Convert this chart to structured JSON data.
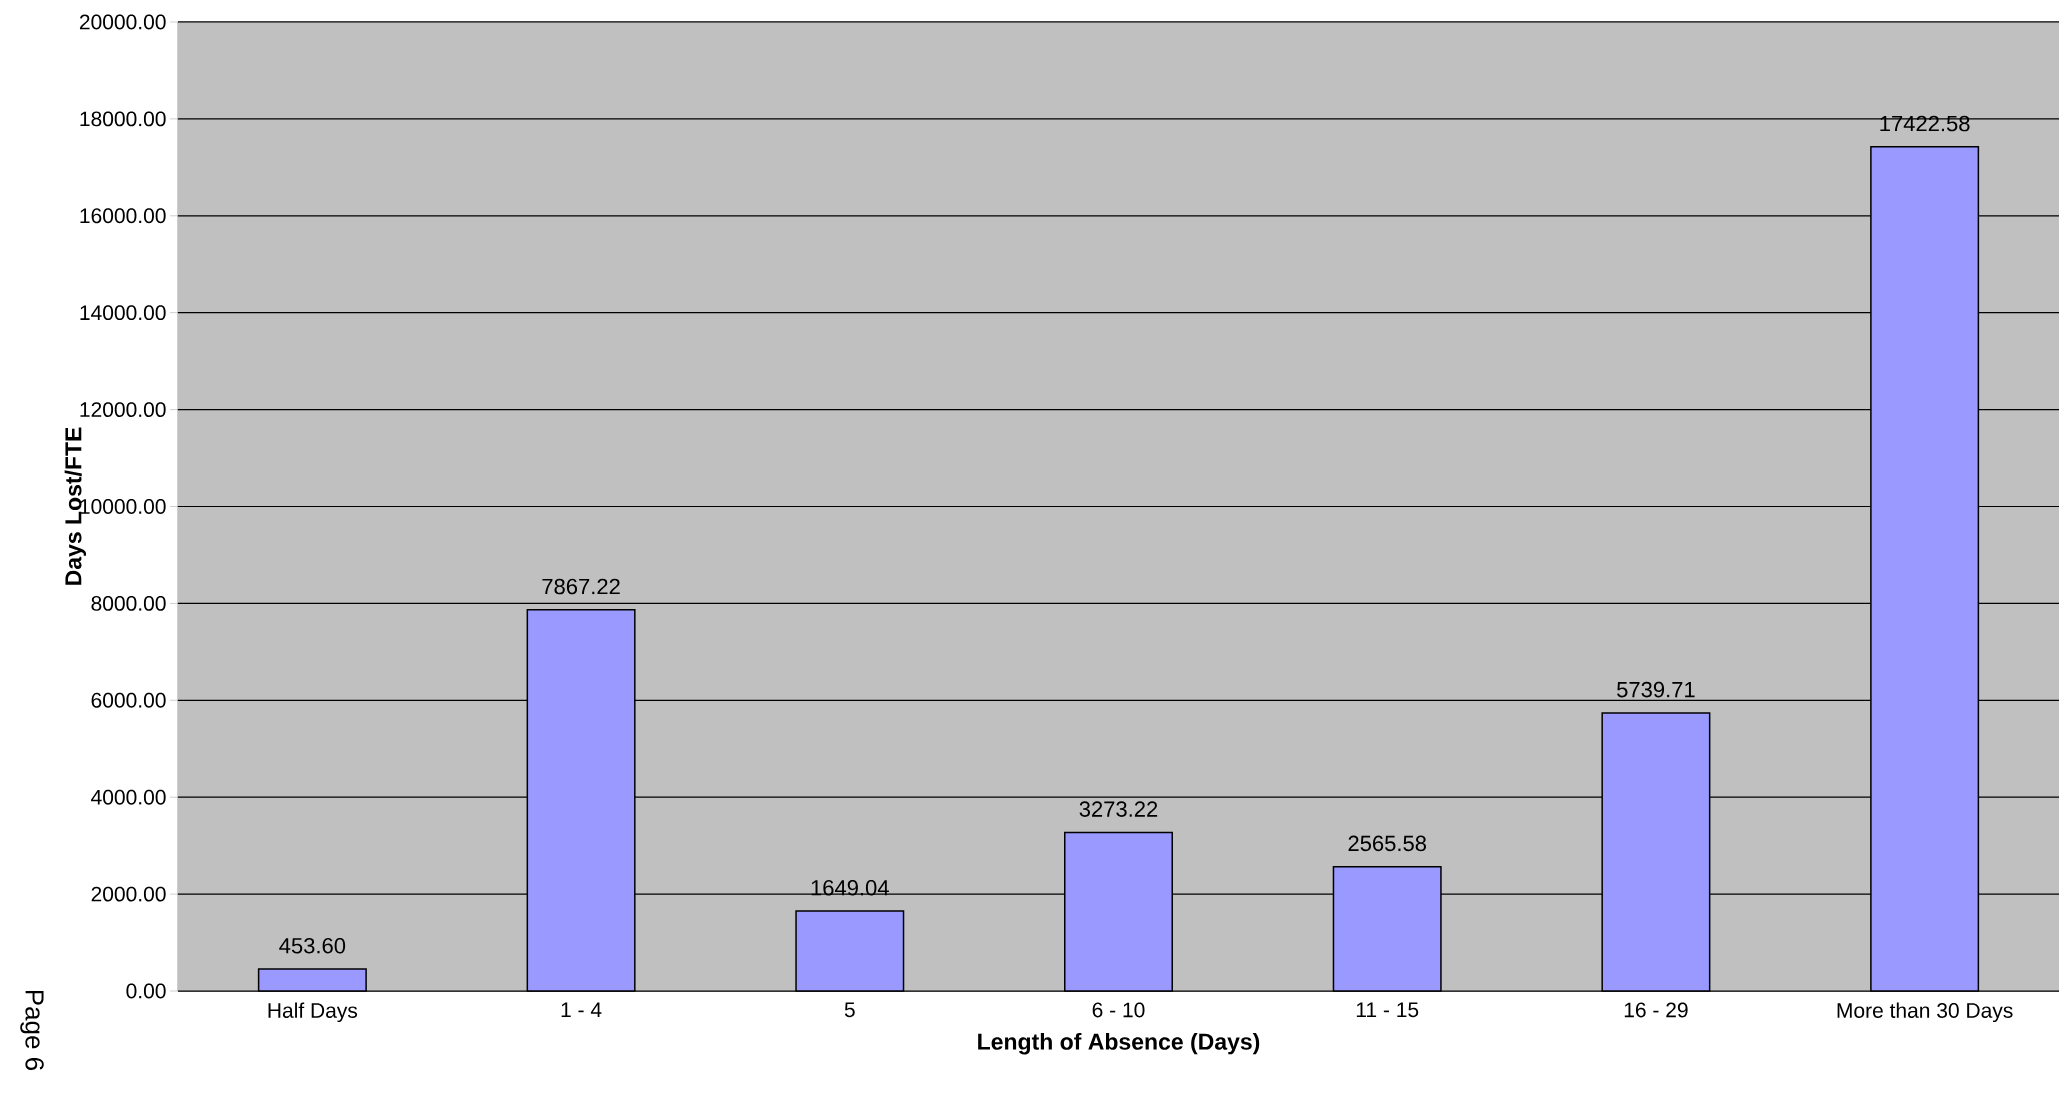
{
  "chart_data": {
    "type": "bar",
    "xlabel": "Length of Absence (Days)",
    "ylabel": "Days Lost/FTE",
    "categories": [
      "Half Days",
      "1 - 4",
      "5",
      "6 - 10",
      "11 - 15",
      "16 - 29",
      "More than 30 Days"
    ],
    "values": [
      453.6,
      7867.22,
      1649.04,
      3273.22,
      2565.58,
      5739.71,
      17422.58
    ],
    "value_labels": [
      "453.60",
      "7867.22",
      "1649.04",
      "3273.22",
      "2565.58",
      "5739.71",
      "17422.58"
    ],
    "color": "#9999ff",
    "ylim": [
      0,
      20000
    ],
    "yticks": [
      {
        "value": 0,
        "label": "0.00"
      },
      {
        "value": 2000,
        "label": "2000.00"
      },
      {
        "value": 4000,
        "label": "4000.00"
      },
      {
        "value": 6000,
        "label": "6000.00"
      },
      {
        "value": 8000,
        "label": "8000.00"
      },
      {
        "value": 10000,
        "label": "10000.00"
      },
      {
        "value": 12000,
        "label": "12000.00"
      },
      {
        "value": 14000,
        "label": "14000.00"
      },
      {
        "value": 16000,
        "label": "16000.00"
      },
      {
        "value": 18000,
        "label": "18000.00"
      },
      {
        "value": 20000,
        "label": "20000.00"
      }
    ],
    "grid": "y",
    "annotations": [
      "Page 6"
    ]
  }
}
